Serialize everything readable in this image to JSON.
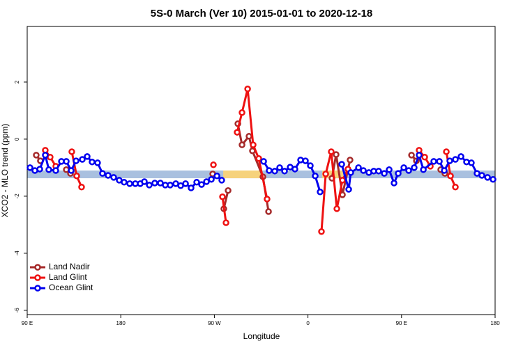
{
  "chart_data": {
    "type": "scatter",
    "title": "5S-0 March (Ver 10)   2015-01-01 to 2020-12-18",
    "x_label": "Longitude",
    "y_label": "XCO2 - MLO trend (ppm)",
    "xlim": [
      90,
      540
    ],
    "ylim": [
      -6.15,
      3.95
    ],
    "xticks": [
      {
        "value": 90,
        "label": "90 E"
      },
      180,
      {
        "value": 270,
        "label": "90 W"
      },
      {
        "value": 360,
        "label": "0"
      },
      {
        "value": 450,
        "label": "90 E"
      },
      {
        "value": 540,
        "label": "180"
      }
    ],
    "yticks": [
      2,
      0,
      -2,
      -4,
      -6
    ],
    "legend": "bottom-left",
    "band": {
      "ylim": [
        -1.37,
        -1.1
      ],
      "color": "#a9c0df",
      "highlight": [
        [
          278.5,
          315.4
        ],
        [
          373.7,
          393.8
        ]
      ],
      "highlight_color": "#f6d27c"
    },
    "series": [
      {
        "name": "Land Nadir",
        "color": "#a52a2a",
        "x": [
          98.7,
          102.7,
          null,
          127.6,
          131.6,
          null,
          268.4,
          null,
          279.1,
          283.2,
          null,
          292.6,
          296.6,
          303.3,
          306.6,
          316.7,
          322.1,
          null,
          383.1,
          387.1,
          393.2,
          400.5,
          null,
          459.6,
          464.3,
          null,
          487.7,
          491.7
        ],
        "values": [
          -0.56,
          -0.76,
          null,
          -1.07,
          -1.2,
          null,
          -1.22,
          null,
          -2.44,
          -1.8,
          null,
          0.54,
          -0.2,
          0.1,
          -0.41,
          -1.32,
          -2.54,
          null,
          -1.37,
          -0.54,
          -1.95,
          -0.73,
          null,
          -0.56,
          -0.76,
          null,
          -1.07,
          -1.2
        ]
      },
      {
        "name": "Land Glint",
        "color": "#ee1111",
        "x": [
          107.4,
          112.1,
          117.5,
          null,
          132.9,
          137.6,
          142.3,
          null,
          269.1,
          null,
          277.8,
          281.2,
          null,
          291.9,
          296.6,
          302.0,
          307.3,
          312.7,
          320.7,
          null,
          373.0,
          377.1,
          382.4,
          387.8,
          393.2,
          398.5,
          null,
          466.9,
          472.3,
          477.7,
          null,
          493.1,
          497.1,
          501.8
        ],
        "values": [
          -0.39,
          -0.63,
          -0.95,
          null,
          -0.44,
          -1.29,
          -1.68,
          null,
          -0.9,
          null,
          -2.02,
          -2.93,
          null,
          0.24,
          0.93,
          1.76,
          -0.2,
          -0.68,
          -2.1,
          null,
          -3.24,
          -1.22,
          -0.44,
          -2.44,
          -1.44,
          -1.05,
          null,
          -0.39,
          -0.63,
          -0.95,
          null,
          -0.44,
          -1.29,
          -1.68
        ]
      },
      {
        "name": "Ocean Glint",
        "color": "#0000ee",
        "x": [
          92.7,
          97.4,
          102.1,
          107.4,
          110.8,
          117.5,
          122.9,
          127.6,
          132.3,
          137.0,
          143.0,
          147.7,
          152.4,
          157.7,
          162.4,
          167.8,
          173.2,
          178.5,
          183.2,
          188.6,
          194.0,
          198.7,
          202.7,
          207.4,
          212.7,
          218.1,
          222.8,
          227.5,
          232.9,
          237.6,
          242.3,
          247.6,
          253.0,
          257.7,
          262.4,
          267.1,
          272.5,
          277.1,
          null,
          317.4,
          322.7,
          328.1,
          332.8,
          337.5,
          342.9,
          347.5,
          352.9,
          357.6,
          362.3,
          367.0,
          371.7,
          null,
          392.5,
          399.2,
          401.2,
          408.6,
          413.3,
          418.6,
          423.3,
          428.0,
          433.4,
          438.1,
          442.8,
          446.8,
          452.2,
          456.9,
          462.2,
          466.9,
          471.0,
          481.0,
          486.4,
          491.1,
          496.4,
          501.8,
          507.2,
          512.5,
          517.2,
          522.6,
          527.3,
          532.7,
          538.0
        ],
        "values": [
          -1.0,
          -1.1,
          -1.05,
          -0.56,
          -1.07,
          -1.1,
          -0.78,
          -0.78,
          -1.1,
          -0.76,
          -0.71,
          -0.61,
          -0.8,
          -0.83,
          -1.2,
          -1.27,
          -1.34,
          -1.44,
          -1.51,
          -1.56,
          -1.56,
          -1.56,
          -1.49,
          -1.61,
          -1.54,
          -1.54,
          -1.61,
          -1.61,
          -1.56,
          -1.63,
          -1.56,
          -1.71,
          -1.51,
          -1.59,
          -1.49,
          -1.41,
          -1.29,
          -1.44,
          null,
          -0.78,
          -1.1,
          -1.12,
          -1.0,
          -1.12,
          -0.98,
          -1.05,
          -0.73,
          -0.76,
          -0.93,
          -1.29,
          -1.85,
          null,
          -0.88,
          -1.76,
          -1.17,
          -1.0,
          -1.1,
          -1.17,
          -1.12,
          -1.12,
          -1.2,
          -1.07,
          -1.54,
          -1.2,
          -1.0,
          -1.1,
          -1.0,
          -0.56,
          -1.07,
          -0.78,
          -0.78,
          -1.1,
          -0.76,
          -0.71,
          -0.61,
          -0.8,
          -0.83,
          -1.2,
          -1.27,
          -1.34,
          -1.41
        ]
      }
    ]
  }
}
